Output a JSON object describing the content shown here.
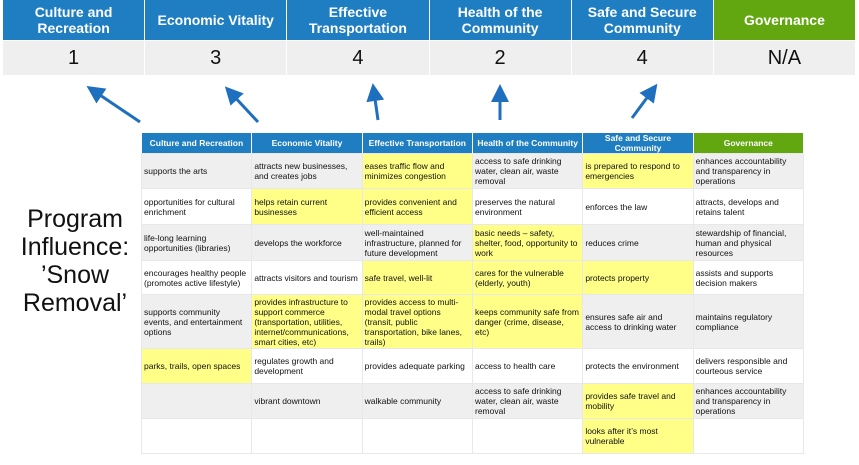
{
  "summary": {
    "headers": [
      "Culture and Recreation",
      "Economic Vitality",
      "Effective Transportation",
      "Health of the Community",
      "Safe and Secure Community",
      "Governance"
    ],
    "scores": [
      "1",
      "3",
      "4",
      "2",
      "4",
      "N/A"
    ]
  },
  "title": "Program Influence: ’Snow Removal’",
  "colors": {
    "header_blue": "#1f7ec1",
    "governance_green": "#62a70f",
    "highlight": "#ffff88",
    "arrow": "#1f6fbf"
  },
  "table": {
    "headers": [
      "Culture and Recreation",
      "Economic Vitality",
      "Effective Transportation",
      "Health of the Community",
      "Safe and Secure Community",
      "Governance"
    ],
    "rows": [
      {
        "cells": [
          "supports the arts",
          "attracts new businesses, and creates jobs",
          "eases traffic flow and minimizes congestion",
          "access to safe drinking water, clean air, waste removal",
          "is prepared to respond to emergencies",
          "enhances accountability and transparency in operations"
        ],
        "highlighted": [
          2,
          4
        ]
      },
      {
        "cells": [
          "opportunities for cultural enrichment",
          "helps retain current businesses",
          "provides convenient and efficient access",
          "preserves the natural environment",
          "enforces the law",
          "attracts, develops and retains talent"
        ],
        "highlighted": [
          1,
          2
        ]
      },
      {
        "cells": [
          "life-long learning opportunities (libraries)",
          "develops the workforce",
          "well-maintained infrastructure, planned for future development",
          "basic needs – safety, shelter, food, opportunity to work",
          "reduces crime",
          "stewardship of financial, human and physical resources"
        ],
        "highlighted": [
          3
        ]
      },
      {
        "cells": [
          "encourages healthy people (promotes active lifestyle)",
          "attracts visitors and tourism",
          "safe travel, well-lit",
          "cares for the vulnerable (elderly, youth)",
          "protects property",
          "assists and supports decision makers"
        ],
        "highlighted": [
          2,
          3,
          4
        ]
      },
      {
        "cells": [
          "supports community events, and entertainment options",
          "provides infrastructure to support commerce (transportation, utilities, internet/communications, smart cities, etc)",
          "provides access to multi-modal travel options (transit, public transportation, bike lanes, trails)",
          "keeps community safe from danger (crime, disease, etc)",
          "ensures safe air and access to drinking water",
          "maintains regulatory compliance"
        ],
        "highlighted": [
          1,
          2,
          3
        ]
      },
      {
        "cells": [
          "parks, trails, open spaces",
          "regulates growth and development",
          "provides adequate parking",
          "access to health care",
          "protects the environment",
          "delivers responsible and courteous service"
        ],
        "highlighted": [
          0
        ]
      },
      {
        "cells": [
          "",
          "vibrant downtown",
          "walkable community",
          "access to safe drinking water, clean air, waste removal",
          "provides safe travel and mobility",
          "enhances accountability and transparency in operations"
        ],
        "highlighted": [
          4
        ]
      },
      {
        "cells": [
          "",
          "",
          "",
          "",
          "looks after it’s most vulnerable",
          ""
        ],
        "highlighted": [
          4
        ]
      }
    ]
  }
}
